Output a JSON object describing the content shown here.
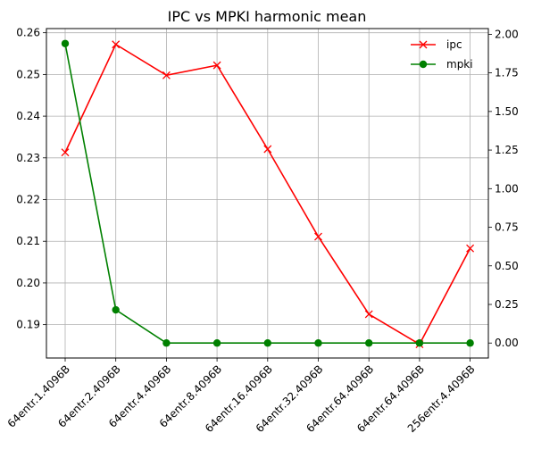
{
  "chart_data": {
    "type": "line",
    "title": "IPC vs MPKI harmonic mean",
    "categories": [
      "64entr.1.4096B",
      "64entr.2.4096B",
      "64entr.4.4096B",
      "64entr.8.4096B",
      "64entr.16.4096B",
      "64entr.32.4096B",
      "64entr.64.4096B",
      "64entr.64.4096B",
      "256entr.4.4096B"
    ],
    "grid": true,
    "legend_position": "top-right",
    "y_left": {
      "range": [
        0.182,
        0.261
      ],
      "ticks": [
        0.19,
        0.2,
        0.21,
        0.22,
        0.23,
        0.24,
        0.25,
        0.26
      ],
      "tick_labels": [
        "0.19",
        "0.20",
        "0.21",
        "0.22",
        "0.23",
        "0.24",
        "0.25",
        "0.26"
      ]
    },
    "y_right": {
      "range": [
        -0.097,
        2.037
      ],
      "ticks": [
        0.0,
        0.25,
        0.5,
        0.75,
        1.0,
        1.25,
        1.5,
        1.75,
        2.0
      ],
      "tick_labels": [
        "0.00",
        "0.25",
        "0.50",
        "0.75",
        "1.00",
        "1.25",
        "1.50",
        "1.75",
        "2.00"
      ]
    },
    "series": [
      {
        "name": "ipc",
        "axis": "left",
        "color": "#ff0000",
        "marker": "x",
        "values": [
          0.2313,
          0.2572,
          0.2498,
          0.2522,
          0.2321,
          0.2111,
          0.1925,
          0.1853,
          0.2083
        ]
      },
      {
        "name": "mpki",
        "axis": "right",
        "color": "#008000",
        "marker": "circle",
        "values": [
          1.94,
          0.215,
          0.0,
          0.0,
          0.0,
          0.0,
          0.0,
          0.0,
          0.0
        ]
      }
    ]
  }
}
